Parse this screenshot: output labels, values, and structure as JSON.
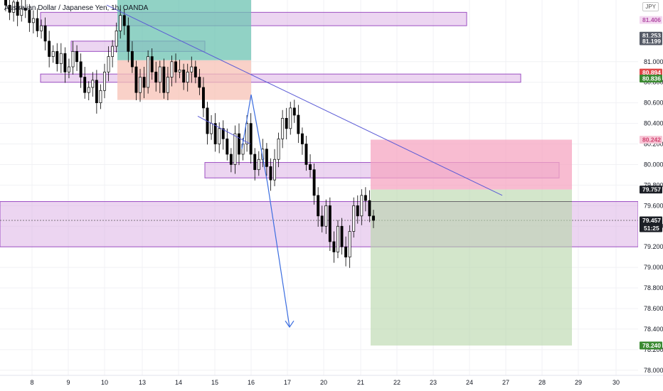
{
  "chart_data": {
    "type": "candlestick",
    "title": "Australian Dollar / Japanese Yen, 1h, OANDA",
    "currency": "JPY",
    "ylim": [
      77.95,
      81.6
    ],
    "y_ticks": [
      "81.000",
      "80.800",
      "80.600",
      "80.400",
      "80.200",
      "80.000",
      "79.800",
      "79.600",
      "79.400",
      "79.200",
      "79.000",
      "78.800",
      "78.600",
      "78.400",
      "78.200",
      "78.000"
    ],
    "x_ticks": [
      "8",
      "9",
      "10",
      "13",
      "14",
      "15",
      "16",
      "17",
      "20",
      "21",
      "22",
      "23",
      "24",
      "27",
      "28",
      "29",
      "30"
    ],
    "price_badges": [
      {
        "label": "81.406",
        "value": 81.406,
        "bg": "#f3d7f0",
        "fg": "#b24fa6"
      },
      {
        "label": "81.253",
        "value": 81.253,
        "bg": "#555a66",
        "fg": "#ffffff"
      },
      {
        "label": "81.199",
        "value": 81.199,
        "bg": "#555a66",
        "fg": "#ffffff"
      },
      {
        "label": "80.894",
        "value": 80.894,
        "bg": "#e04848",
        "fg": "#ffffff"
      },
      {
        "label": "80.836",
        "value": 80.836,
        "bg": "#3b8a32",
        "fg": "#ffffff"
      },
      {
        "label": "80.242",
        "value": 80.242,
        "bg": "#f7c6d6",
        "fg": "#d0426f"
      },
      {
        "label": "79.757",
        "value": 79.757,
        "bg": "#1c1f26",
        "fg": "#ffffff"
      },
      {
        "label": "79.457",
        "value": 79.457,
        "bg": "#1c1f26",
        "fg": "#ffffff",
        "sub": "51:25"
      },
      {
        "label": "78.240",
        "value": 78.24,
        "bg": "#3b8a32",
        "fg": "#ffffff"
      }
    ],
    "zones": [
      {
        "name": "supply-zone-top",
        "x": [
          "1",
          "10.0"
        ],
        "y": [
          81.35,
          81.48
        ],
        "color": "#dcb3e6"
      },
      {
        "name": "zone-small-upper",
        "x": [
          "2",
          "5.6"
        ],
        "y": [
          81.1,
          81.2
        ],
        "color": "#dcb3e6"
      },
      {
        "name": "zone-mid-left",
        "x": [
          "1",
          "14.3"
        ],
        "y": [
          80.8,
          80.88
        ],
        "color": "#dcb3e6"
      },
      {
        "name": "zone-resistance",
        "x": [
          "5.6",
          "15.2"
        ],
        "y": [
          79.87,
          80.02
        ],
        "color": "#dcb3e6"
      },
      {
        "name": "zone-current",
        "x": [
          "0",
          "18"
        ],
        "y": [
          79.2,
          79.64
        ],
        "color": "#dcb3e6"
      }
    ],
    "positions": [
      {
        "name": "long-position",
        "entry": 80.894,
        "tp": 81.6,
        "sl": 80.836,
        "color_tp": "#6cc3b2",
        "color_sl": "#f7c2b6"
      },
      {
        "name": "short-position",
        "entry": 79.757,
        "sl": 80.242,
        "tp": 78.24,
        "color_sl": "#f6a6c1",
        "color_tp": "#b6d6a8"
      }
    ],
    "candles_close": [
      81.55,
      81.48,
      81.58,
      81.45,
      81.52,
      81.5,
      81.38,
      81.42,
      81.3,
      81.35,
      81.2,
      81.05,
      81.1,
      80.98,
      81.08,
      80.9,
      80.95,
      81.1,
      81.0,
      80.85,
      80.7,
      80.75,
      80.82,
      80.6,
      80.72,
      80.9,
      81.05,
      81.15,
      81.3,
      81.45,
      81.35,
      81.1,
      80.95,
      80.7,
      80.85,
      80.75,
      81.05,
      80.9,
      80.8,
      80.95,
      80.7,
      80.85,
      81.0,
      80.9,
      80.92,
      80.8,
      80.9,
      80.95,
      80.85,
      80.75,
      80.55,
      80.3,
      80.4,
      80.2,
      80.35,
      80.25,
      80.1,
      80.0,
      80.3,
      80.1,
      80.2,
      80.4,
      80.1,
      79.95,
      80.05,
      80.15,
      79.98,
      79.85,
      80.05,
      80.25,
      80.45,
      80.35,
      80.55,
      80.48,
      80.3,
      80.2,
      80.0,
      79.95,
      79.7,
      79.5,
      79.4,
      79.6,
      79.25,
      79.15,
      79.4,
      79.2,
      79.1,
      79.35,
      79.6,
      79.5,
      79.7,
      79.65,
      79.5,
      79.457
    ]
  }
}
